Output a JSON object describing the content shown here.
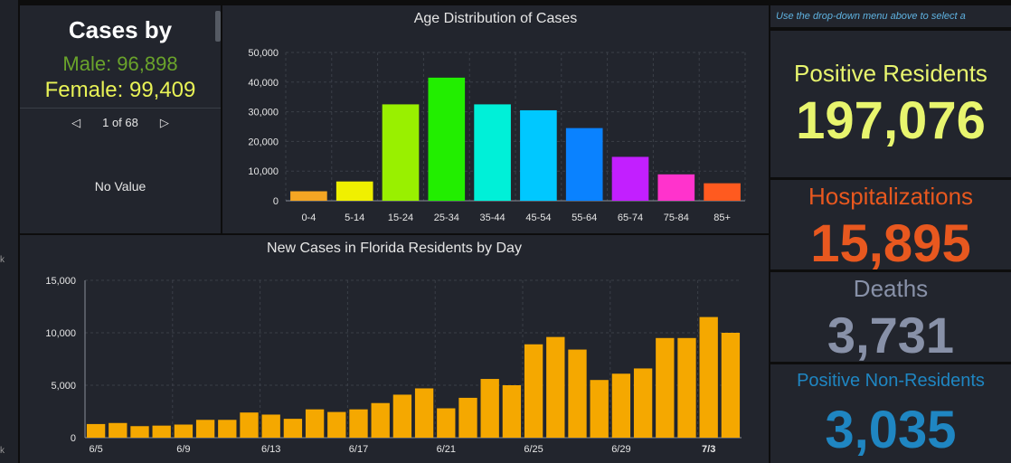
{
  "cases_by": {
    "title": "Cases by",
    "male": "Male: 96,898",
    "female": "Female: 99,409",
    "pager": "1 of 68",
    "no_value": "No Value"
  },
  "left_edge": {
    "mark1": "k",
    "mark2": "k"
  },
  "age_chart": {
    "chart_data": {
      "type": "bar",
      "title": "Age Distribution of Cases",
      "categories": [
        "0-4",
        "5-14",
        "15-24",
        "25-34",
        "35-44",
        "45-54",
        "55-64",
        "65-74",
        "75-84",
        "85+"
      ],
      "values": [
        3200,
        6500,
        32500,
        41500,
        32500,
        30500,
        24500,
        14800,
        8900,
        5900
      ],
      "colors": [
        "#f5a623",
        "#f0f000",
        "#99f000",
        "#22ee00",
        "#00f0d8",
        "#00c8ff",
        "#0a82ff",
        "#c21fff",
        "#ff33cc",
        "#ff5a1f"
      ],
      "ylim": [
        0,
        50000
      ],
      "yticks": [
        "0",
        "10,000",
        "20,000",
        "30,000",
        "40,000",
        "50,000"
      ],
      "grid": true
    }
  },
  "daily_chart": {
    "chart_data": {
      "type": "bar",
      "title": "New Cases in Florida Residents by Day",
      "categories": [
        "6/5",
        "6/6",
        "6/7",
        "6/8",
        "6/9",
        "6/10",
        "6/11",
        "6/12",
        "6/13",
        "6/14",
        "6/15",
        "6/16",
        "6/17",
        "6/18",
        "6/19",
        "6/20",
        "6/21",
        "6/22",
        "6/23",
        "6/24",
        "6/25",
        "6/26",
        "6/27",
        "6/28",
        "6/29",
        "6/30",
        "7/1",
        "7/2",
        "7/3",
        "7/4"
      ],
      "values": [
        1300,
        1400,
        1100,
        1150,
        1250,
        1700,
        1700,
        2400,
        2200,
        1800,
        2700,
        2450,
        2700,
        3300,
        4100,
        4700,
        2800,
        3800,
        5600,
        5000,
        8900,
        9600,
        8400,
        5500,
        6100,
        6600,
        9500,
        9500,
        11500,
        10000
      ],
      "xtick_labels": [
        "6/5",
        "6/9",
        "6/13",
        "6/17",
        "6/21",
        "6/25",
        "6/29",
        "7/3"
      ],
      "xtick_index": [
        0,
        4,
        8,
        12,
        16,
        20,
        24,
        28
      ],
      "highlight_tick": "7/3",
      "color": "#f5a800",
      "ylim": [
        0,
        15000
      ],
      "yticks": [
        "0",
        "5,000",
        "10,000",
        "15,000"
      ],
      "grid": true
    }
  },
  "right": {
    "note": "Use the drop-down menu above to select a",
    "positive_residents": {
      "label": "Positive Residents",
      "value": "197,076",
      "color": "#e8f56e"
    },
    "hospitalizations": {
      "label": "Hospitalizations",
      "value": "15,895",
      "color": "#e8581f"
    },
    "deaths": {
      "label": "Deaths",
      "value": "3,731",
      "color": "#8891a8"
    },
    "non_residents": {
      "label": "Positive Non-Residents",
      "value": "3,035",
      "color": "#1f86c2"
    }
  }
}
